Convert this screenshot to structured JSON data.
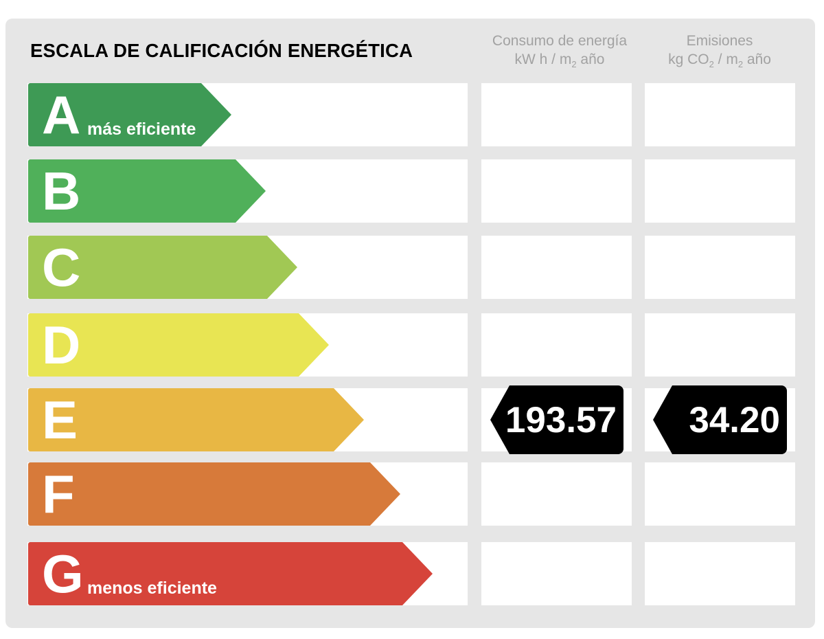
{
  "title": "ESCALA DE CALIFICACIÓN ENERGÉTICA",
  "columns": {
    "energy": {
      "line1": "Consumo de energía",
      "line2_pre": "kW h / m",
      "line2_sub": "2",
      "line2_post": " año"
    },
    "emissions": {
      "line1": "Emisiones",
      "line2_pre": "kg CO",
      "line2_sub1": "2",
      "line2_mid": " / m",
      "line2_sub2": "2",
      "line2_post": " año"
    }
  },
  "ratings": [
    {
      "letter": "A",
      "label": "más eficiente",
      "color": "#3e9a55"
    },
    {
      "letter": "B",
      "label": "",
      "color": "#50b05a"
    },
    {
      "letter": "C",
      "label": "",
      "color": "#a1c854"
    },
    {
      "letter": "D",
      "label": "",
      "color": "#e8e553"
    },
    {
      "letter": "E",
      "label": "",
      "color": "#e8b744"
    },
    {
      "letter": "F",
      "label": "",
      "color": "#d77a3a"
    },
    {
      "letter": "G",
      "label": "menos eficiente",
      "color": "#d6443a"
    }
  ],
  "current_rating": "E",
  "energy_value": "193.57",
  "emissions_value": "34.20"
}
